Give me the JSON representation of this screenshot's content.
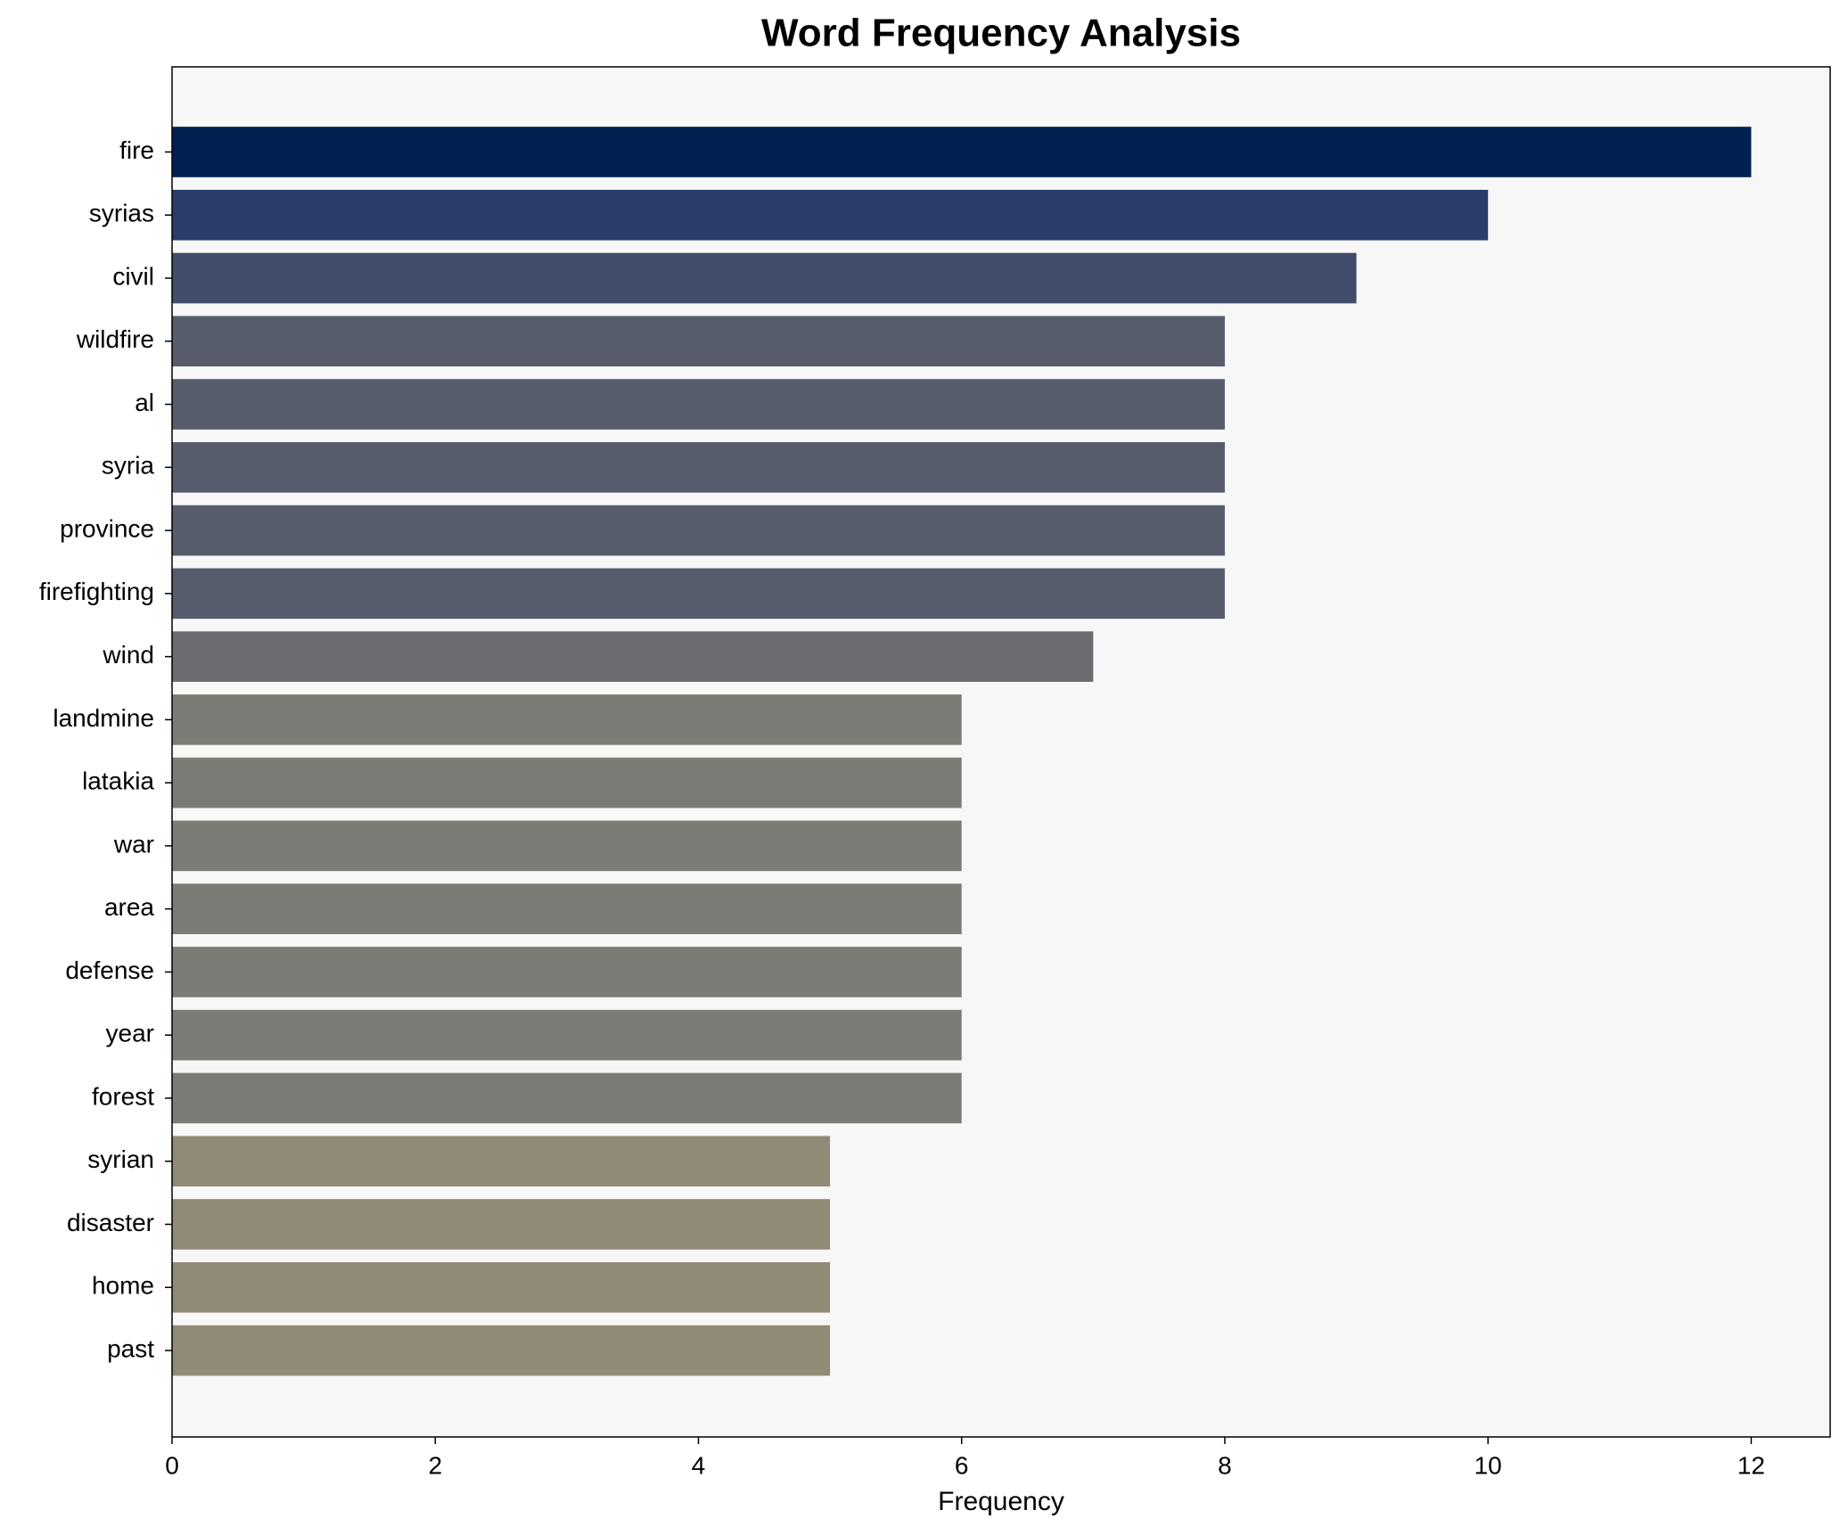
{
  "chart_data": {
    "type": "barh",
    "title": "Word Frequency Analysis",
    "xlabel": "Frequency",
    "categories": [
      "fire",
      "syrias",
      "civil",
      "wildfire",
      "al",
      "syria",
      "province",
      "firefighting",
      "wind",
      "landmine",
      "latakia",
      "war",
      "area",
      "defense",
      "year",
      "forest",
      "syrian",
      "disaster",
      "home",
      "past"
    ],
    "values": [
      12,
      10,
      9,
      8,
      8,
      8,
      8,
      8,
      7,
      6,
      6,
      6,
      6,
      6,
      6,
      6,
      5,
      5,
      5,
      5
    ],
    "colors": [
      "#002050",
      "#2b3c6b",
      "#414d6b",
      "#575c6d",
      "#575c6d",
      "#575c6d",
      "#575c6d",
      "#575c6d",
      "#6b6c70",
      "#7c7b76",
      "#7c7b76",
      "#7c7b76",
      "#7c7b76",
      "#7c7b76",
      "#7c7b76",
      "#7c7b76",
      "#918a76",
      "#918a76",
      "#918a76",
      "#918a76"
    ],
    "xlim": [
      0,
      12.6
    ],
    "xticks": [
      0,
      2,
      4,
      6,
      8,
      10,
      12
    ]
  }
}
